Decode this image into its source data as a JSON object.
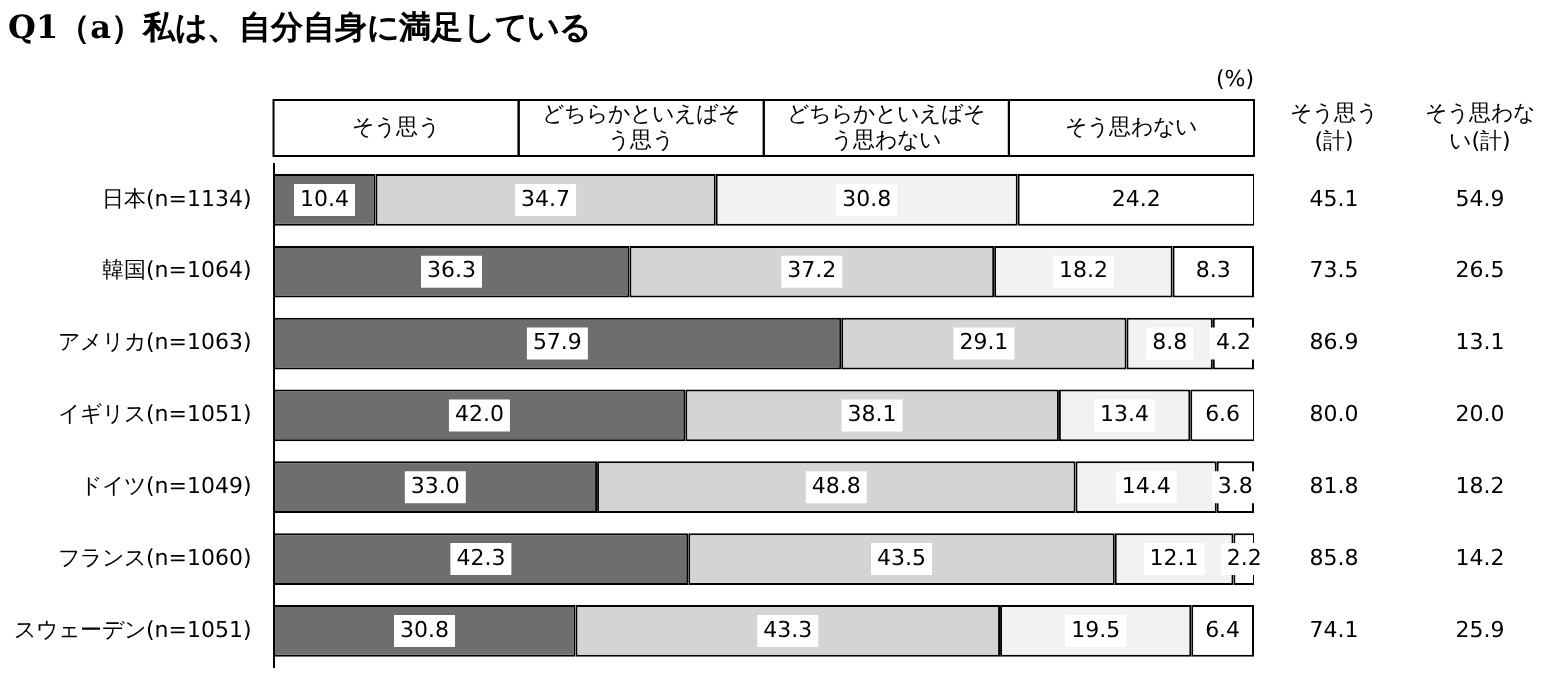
{
  "chart_data": {
    "type": "bar",
    "orientation": "horizontal",
    "stacked": true,
    "title": "Q1（a）私は、自分自身に満足している",
    "categories": [
      "日本(n=1134)",
      "韓国(n=1064)",
      "アメリカ(n=1063)",
      "イギリス(n=1051)",
      "ドイツ(n=1049)",
      "フランス(n=1060)",
      "スウェーデン(n=1051)"
    ],
    "series": [
      {
        "name": "そう思う",
        "color": "#6e6e6e",
        "values": [
          10.4,
          36.3,
          57.9,
          42.0,
          33.0,
          42.3,
          30.8
        ],
        "value_labels": [
          "10.4",
          "36.3",
          "57.9",
          "42.0",
          "33.0",
          "42.3",
          "30.8"
        ]
      },
      {
        "name": "どちらかといえばそう思う",
        "color": "#d4d4d4",
        "values": [
          34.7,
          37.2,
          29.1,
          38.1,
          48.8,
          43.5,
          43.3
        ],
        "value_labels": [
          "34.7",
          "37.2",
          "29.1",
          "38.1",
          "48.8",
          "43.5",
          "43.3"
        ]
      },
      {
        "name": "どちらかといえばそう思わない",
        "color": "#f2f2f2",
        "values": [
          30.8,
          18.2,
          8.8,
          13.4,
          14.4,
          12.1,
          19.5
        ],
        "value_labels": [
          "30.8",
          "18.2",
          "8.8",
          "13.4",
          "14.4",
          "12.1",
          "19.5"
        ]
      },
      {
        "name": "そう思わない",
        "color": "#ffffff",
        "values": [
          24.2,
          8.3,
          4.2,
          6.6,
          3.8,
          2.2,
          6.4
        ],
        "value_labels": [
          "24.2",
          "8.3",
          "4.2",
          "6.6",
          "3.8",
          "2.2",
          "6.4"
        ]
      }
    ],
    "xlim": [
      0,
      100
    ],
    "tick_labels": "y",
    "grid": false,
    "legend": "top",
    "annotations": [
      "(%)",
      "そう思う(計)",
      "そう思わない(計)",
      "45.1",
      "54.9",
      "73.5",
      "26.5",
      "86.9",
      "13.1",
      "80.0",
      "20.0",
      "81.8",
      "18.2",
      "85.8",
      "14.2",
      "74.1",
      "25.9"
    ]
  }
}
